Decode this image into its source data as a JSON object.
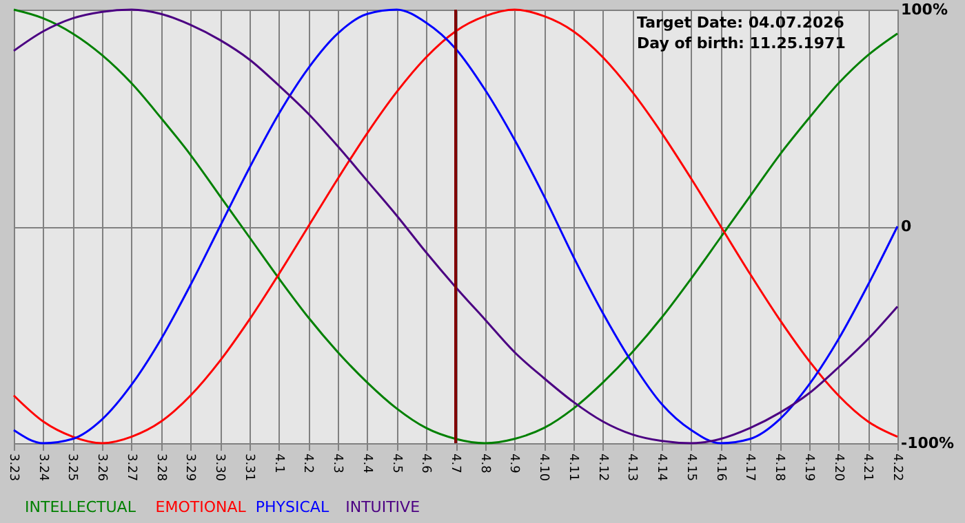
{
  "chart_data": {
    "type": "line",
    "categories": [
      "3.23",
      "3.24",
      "3.25",
      "3.26",
      "3.27",
      "3.28",
      "3.29",
      "3.30",
      "3.31",
      "4.1",
      "4.2",
      "4.3",
      "4.4",
      "4.5",
      "4.6",
      "4.7",
      "4.8",
      "4.9",
      "4.10",
      "4.11",
      "4.12",
      "4.13",
      "4.14",
      "4.15",
      "4.16",
      "4.17",
      "4.18",
      "4.19",
      "4.20",
      "4.21",
      "4.22"
    ],
    "series": [
      {
        "name": "INTELLECTUAL",
        "color": "#008000",
        "values": [
          100,
          96,
          89,
          79,
          66,
          50,
          33,
          14,
          -5,
          -24,
          -42,
          -58,
          -72,
          -84,
          -93,
          -98,
          -100,
          -98,
          -93,
          -84,
          -72,
          -58,
          -42,
          -24,
          -5,
          14,
          33,
          50,
          66,
          79,
          89
        ]
      },
      {
        "name": "EMOTIONAL",
        "color": "#ff0000",
        "values": [
          -78,
          -90,
          -97,
          -100,
          -97,
          -90,
          -78,
          -62,
          -43,
          -22,
          0,
          22,
          43,
          62,
          78,
          90,
          97,
          100,
          97,
          90,
          78,
          62,
          43,
          22,
          0,
          -22,
          -43,
          -62,
          -78,
          -90,
          -97
        ]
      },
      {
        "name": "PHYSICAL",
        "color": "#0000ff",
        "values": [
          -94,
          -100,
          -98,
          -89,
          -73,
          -52,
          -27,
          0,
          27,
          52,
          73,
          89,
          98,
          100,
          94,
          82,
          63,
          40,
          14,
          -14,
          -40,
          -63,
          -82,
          -94,
          -100,
          -98,
          -89,
          -73,
          -52,
          -27,
          0
        ]
      },
      {
        "name": "INTUITIVE",
        "color": "#4b0082",
        "values": [
          81,
          90,
          96,
          99,
          100,
          98,
          93,
          86,
          77,
          65,
          52,
          37,
          21,
          5,
          -12,
          -28,
          -43,
          -58,
          -70,
          -81,
          -90,
          -96,
          -99,
          -100,
          -98,
          -93,
          -86,
          -77,
          -65,
          -52,
          -37
        ]
      }
    ],
    "ylim": [
      -100,
      100
    ],
    "yticks": [
      {
        "value": -100,
        "label": "-100%"
      },
      {
        "value": 0,
        "label": "0"
      },
      {
        "value": 100,
        "label": "100%"
      }
    ],
    "grid": true,
    "legend": "bottom left",
    "ref_lines": [
      {
        "axis": "x",
        "value": "4.7",
        "color": "#800000"
      }
    ],
    "annotations": [
      "Target Date: 04.07.2026",
      "Day of birth: 11.25.1971"
    ]
  }
}
